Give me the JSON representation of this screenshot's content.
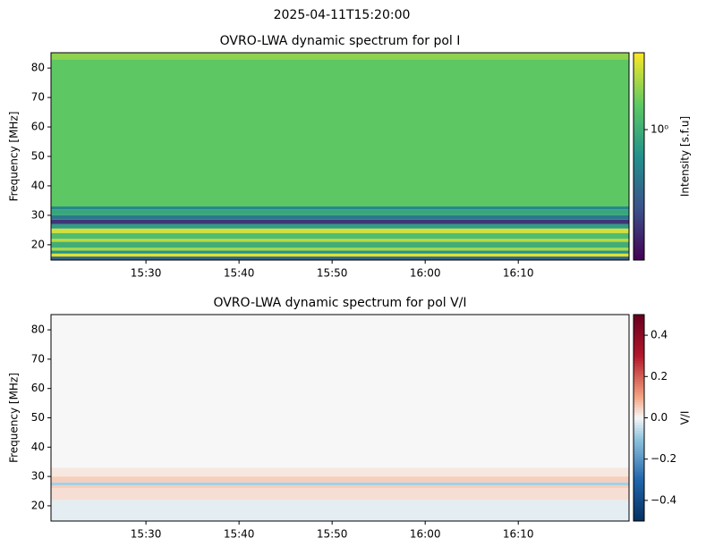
{
  "title": "2025-04-11T15:20:00",
  "chart_data": [
    {
      "type": "heatmap",
      "title": "OVRO-LWA dynamic spectrum for pol I",
      "y_label": "Frequency [MHz]",
      "colorbar_label": "Intensity [s.f.u]",
      "colormap": "viridis",
      "color_log_scale": true,
      "clim": [
        0.155,
        3
      ],
      "cticks": [
        {
          "value": 1,
          "label": "10⁰"
        }
      ],
      "xlim": [
        919.8,
        981.9
      ],
      "xticks": [
        {
          "value": 930,
          "label": "15:30"
        },
        {
          "value": 940,
          "label": "15:40"
        },
        {
          "value": 950,
          "label": "15:50"
        },
        {
          "value": 960,
          "label": "16:00"
        },
        {
          "value": 970,
          "label": "16:10"
        }
      ],
      "ylim": [
        14.8,
        85.2
      ],
      "yticks": [
        20,
        30,
        40,
        50,
        60,
        70,
        80
      ],
      "y_edges": [
        14.8,
        16,
        17,
        18,
        19,
        21,
        22,
        24,
        25.5,
        27,
        28.5,
        30,
        32,
        33,
        83,
        85.2
      ],
      "values": [
        0.4,
        2.6,
        0.7,
        2.0,
        1.0,
        2.2,
        1.2,
        2.5,
        0.8,
        0.25,
        0.5,
        0.9,
        0.6,
        1.4,
        1.8
      ]
    },
    {
      "type": "heatmap",
      "title": "OVRO-LWA dynamic spectrum for pol V/I",
      "y_label": "Frequency [MHz]",
      "colorbar_label": "V/I",
      "colormap": "RdBu_r",
      "color_log_scale": false,
      "clim": [
        -0.5,
        0.5
      ],
      "cticks": [
        {
          "value": -0.4,
          "label": "−0.4"
        },
        {
          "value": -0.2,
          "label": "−0.2"
        },
        {
          "value": 0,
          "label": "0.0"
        },
        0.2,
        0.4
      ],
      "xlim": [
        919.8,
        981.9
      ],
      "xticks": [
        {
          "value": 930,
          "label": "15:30"
        },
        {
          "value": 940,
          "label": "15:40"
        },
        {
          "value": 950,
          "label": "15:50"
        },
        {
          "value": 960,
          "label": "16:00"
        },
        {
          "value": 970,
          "label": "16:10"
        }
      ],
      "ylim": [
        14.8,
        85.2
      ],
      "yticks": [
        20,
        30,
        40,
        50,
        60,
        70,
        80
      ],
      "y_edges": [
        14.8,
        22,
        26,
        27,
        28,
        30,
        33,
        85.2
      ],
      "values": [
        -0.02,
        0.03,
        0.05,
        -0.08,
        0.05,
        0.02,
        0
      ]
    }
  ]
}
